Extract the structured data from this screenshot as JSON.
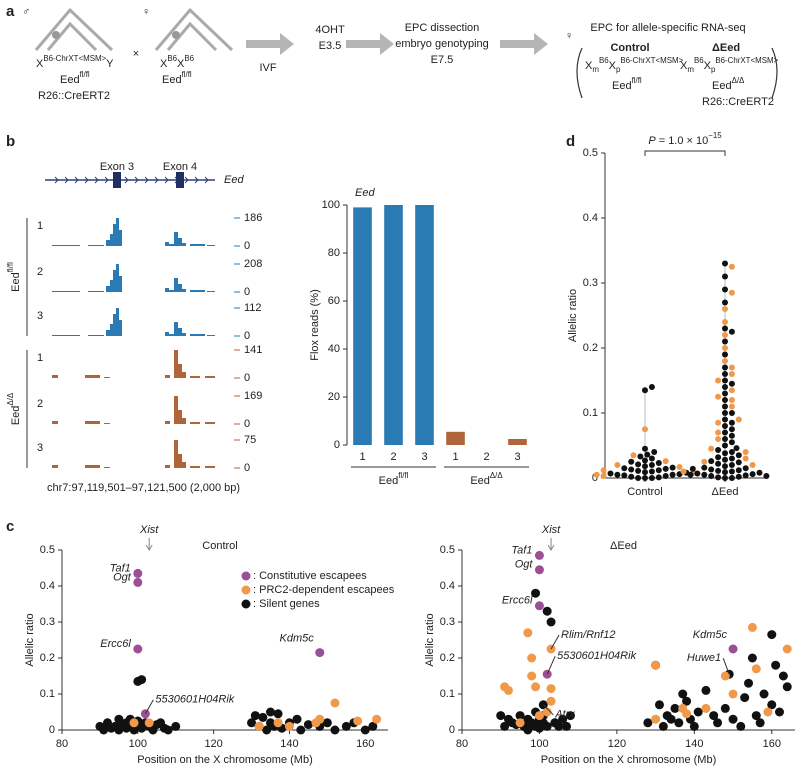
{
  "panel_labels": [
    "a",
    "b",
    "c",
    "d"
  ],
  "diagram": {
    "male_symbol": "♂",
    "female_symbol": "♀",
    "cross": "×",
    "male_genotype": [
      "X",
      "B6-ChrXT<MSM>",
      "Y"
    ],
    "male_eed": [
      "Eed",
      "fl/fl"
    ],
    "male_cre": "R26::CreERT2",
    "female_genotype": [
      "X",
      "B6",
      "X",
      "B6"
    ],
    "female_eed": [
      "Eed",
      "fl/fl"
    ],
    "step1": [
      "IVF"
    ],
    "step2": [
      "4OHT",
      "E3.5"
    ],
    "step3": [
      "EPC dissection",
      "embryo genotyping",
      "E7.5"
    ],
    "result_symbol": "♀",
    "result_title": "EPC for allele-specific RNA-seq",
    "control": {
      "title": "Control",
      "genotype": [
        "X",
        "m",
        "B6",
        "X",
        "p",
        "B6-ChrXT<MSM>"
      ],
      "eed": [
        "Eed",
        "fl/fl"
      ]
    },
    "deltaeed": {
      "title": "ΔEed",
      "genotype": [
        "X",
        "m",
        "B6",
        "X",
        "p",
        "B6-ChrXT<MSM>"
      ],
      "eed": [
        "Eed",
        "Δ/Δ"
      ],
      "cre": "R26::CreERT2"
    }
  },
  "tracks": {
    "exons": [
      "Exon 3",
      "Exon 4"
    ],
    "gene": "Eed",
    "baseline": 0,
    "groups": [
      {
        "label": [
          "Eed",
          "fl/fl"
        ],
        "rows": [
          "1",
          "2",
          "3"
        ],
        "maxima": [
          186,
          208,
          112
        ],
        "color": "#2a7ab4"
      },
      {
        "label": [
          "Eed",
          "Δ/Δ"
        ],
        "rows": [
          "1",
          "2",
          "3"
        ],
        "maxima": [
          141,
          169,
          75
        ],
        "color": "#b0643a"
      }
    ],
    "coordinates": "chr7:97,119,501–97,121,500 (2,000 bp)"
  },
  "chart_data": [
    {
      "type": "bar",
      "title": "Eed",
      "ylabel": "Flox reads (%)",
      "categories": [
        "1",
        "2",
        "3",
        "1",
        "2",
        "3"
      ],
      "values": [
        99,
        100,
        100,
        5.5,
        0,
        2.5
      ],
      "colors": [
        "#2a7ab4",
        "#2a7ab4",
        "#2a7ab4",
        "#b0643a",
        "#b0643a",
        "#b0643a"
      ],
      "groups": [
        [
          "Eed",
          "fl/fl"
        ],
        [
          "Eed",
          "Δ/Δ"
        ]
      ],
      "ylim": [
        0,
        100
      ],
      "yticks": [
        0,
        20,
        40,
        60,
        80,
        100
      ]
    },
    {
      "type": "swarm",
      "ylabel": "Allelic ratio",
      "ylim": [
        0,
        0.5
      ],
      "yticks": [
        0,
        0.1,
        0.2,
        0.3,
        0.4,
        0.5
      ],
      "annotation": [
        "P",
        " = 1.0 × 10",
        "−15"
      ],
      "groups": [
        {
          "name": "Control",
          "series": [
            {
              "color": "#111111",
              "values": [
                0,
                0,
                0,
                0.001,
                0.002,
                0.003,
                0.004,
                0.005,
                0.005,
                0.006,
                0.007,
                0.008,
                0.009,
                0.01,
                0.011,
                0.012,
                0.013,
                0.014,
                0.015,
                0.016,
                0.018,
                0.02,
                0.021,
                0.023,
                0.025,
                0.027,
                0.03,
                0.033,
                0.036,
                0.04,
                0.045,
                0.135,
                0.14
              ]
            },
            {
              "color": "#f0994a",
              "values": [
                0.003,
                0.008,
                0.012,
                0.02,
                0.026,
                0.035,
                0.075,
                0.005,
                0.017
              ]
            }
          ]
        },
        {
          "name": "ΔEed",
          "series": [
            {
              "color": "#111111",
              "values": [
                0,
                0,
                0.001,
                0.002,
                0.003,
                0.004,
                0.005,
                0.006,
                0.007,
                0.008,
                0.009,
                0.01,
                0.011,
                0.012,
                0.013,
                0.015,
                0.016,
                0.018,
                0.02,
                0.022,
                0.024,
                0.026,
                0.028,
                0.03,
                0.032,
                0.035,
                0.038,
                0.04,
                0.043,
                0.046,
                0.05,
                0.055,
                0.06,
                0.065,
                0.07,
                0.075,
                0.08,
                0.085,
                0.09,
                0.1,
                0.11,
                0.12,
                0.13,
                0.14,
                0.16,
                0.17,
                0.19,
                0.21,
                0.23,
                0.27,
                0.29,
                0.31,
                0.33,
                0.225,
                0.15,
                0.145,
                0.1,
                0.005,
                0.014,
                0.003
              ]
            },
            {
              "color": "#f0994a",
              "values": [
                0.01,
                0.02,
                0.03,
                0.045,
                0.06,
                0.07,
                0.085,
                0.09,
                0.11,
                0.12,
                0.125,
                0.135,
                0.15,
                0.16,
                0.17,
                0.18,
                0.2,
                0.22,
                0.24,
                0.26,
                0.285,
                0.325,
                0.04,
                0.025
              ]
            }
          ]
        }
      ]
    },
    {
      "type": "scatter",
      "title": "Control",
      "xlabel": "Position on the X chromosome (Mb)",
      "ylabel": "Allelic ratio",
      "xlim": [
        80,
        166
      ],
      "xticks": [
        80,
        100,
        120,
        140,
        160
      ],
      "ylim": [
        0,
        0.5
      ],
      "yticks": [
        0,
        0.1,
        0.2,
        0.3,
        0.4,
        0.5
      ],
      "reference": {
        "label": "Xist",
        "x": 103
      },
      "legend": "upper right",
      "series": [
        {
          "name": ": Constitutive escapees",
          "color": "#9b4f96",
          "x": [
            100,
            100,
            100,
            102,
            148
          ],
          "values": [
            0.435,
            0.41,
            0.225,
            0.045,
            0.215
          ],
          "labels": [
            "Taf1",
            "Ogt",
            "Ercc6l",
            "5530601H04Rik",
            "Kdm5c"
          ]
        },
        {
          "name": ": PRC2-dependent escapees",
          "color": "#f0994a",
          "x": [
            99,
            103,
            132,
            137,
            140,
            147,
            148,
            152,
            158,
            163
          ],
          "values": [
            0.02,
            0.02,
            0.01,
            0.02,
            0.01,
            0.02,
            0.03,
            0.075,
            0.025,
            0.03
          ]
        },
        {
          "name": ": Silent genes",
          "color": "#111111",
          "x": [
            90,
            91,
            92,
            93,
            94,
            95,
            95,
            96,
            97,
            97,
            98,
            98,
            99,
            99,
            100,
            100,
            101,
            101,
            102,
            103,
            104,
            105,
            106,
            107,
            108,
            110,
            100,
            101,
            130,
            131,
            132,
            133,
            134,
            135,
            135,
            136,
            137,
            138,
            140,
            142,
            143,
            145,
            148,
            150,
            152,
            155,
            157,
            160,
            162
          ],
          "values": [
            0.01,
            0,
            0.02,
            0.005,
            0.01,
            0.03,
            0,
            0.015,
            0.02,
            0.005,
            0.01,
            0.03,
            0,
            0.02,
            0.01,
            0.135,
            0.14,
            0.005,
            0.02,
            0.01,
            0,
            0.015,
            0.02,
            0.005,
            0,
            0.01,
            0.025,
            0.01,
            0.02,
            0.04,
            0.01,
            0.035,
            0,
            0.05,
            0.02,
            0.01,
            0.045,
            0.005,
            0.02,
            0.03,
            0,
            0.015,
            0.01,
            0.02,
            0,
            0.01,
            0.02,
            0,
            0.01
          ]
        }
      ]
    },
    {
      "type": "scatter",
      "title": "ΔEed",
      "xlabel": "Position on the X chromosome (Mb)",
      "ylabel": "Allelic ratio",
      "xlim": [
        80,
        166
      ],
      "xticks": [
        80,
        100,
        120,
        140,
        160
      ],
      "ylim": [
        0,
        0.5
      ],
      "yticks": [
        0,
        0.1,
        0.2,
        0.3,
        0.4,
        0.5
      ],
      "reference": {
        "label": "Xist",
        "x": 103
      },
      "series": [
        {
          "color": "#9b4f96",
          "x": [
            100,
            100,
            100,
            102,
            150
          ],
          "values": [
            0.485,
            0.445,
            0.345,
            0.155,
            0.225
          ],
          "labels": [
            "Taf1",
            "Ogt",
            "Ercc6l",
            "5530601H04Rik",
            "Kdm5c"
          ]
        },
        {
          "color": "#f0994a",
          "x": [
            103,
            97,
            98,
            98,
            92,
            91,
            99,
            103,
            103,
            102,
            100,
            130,
            137,
            138,
            143,
            148,
            150,
            155,
            156,
            159,
            164,
            130,
            95
          ],
          "values": [
            0.225,
            0.27,
            0.2,
            0.15,
            0.11,
            0.12,
            0.12,
            0.115,
            0.08,
            0.05,
            0.04,
            0.18,
            0.06,
            0.045,
            0.06,
            0.15,
            0.1,
            0.285,
            0.17,
            0.05,
            0.225,
            0.03,
            0.02
          ],
          "labels": [
            "Rlim/Rnf12",
            null,
            null,
            null,
            null,
            null,
            null,
            null,
            null,
            null,
            null,
            null,
            null,
            null,
            null,
            null,
            null,
            null,
            null,
            null,
            null,
            null,
            null
          ]
        },
        {
          "color": "#111111",
          "x": [
            90,
            91,
            92,
            93,
            94,
            95,
            96,
            97,
            97,
            98,
            99,
            99,
            100,
            101,
            101,
            102,
            103,
            104,
            105,
            106,
            107,
            108,
            102,
            104,
            101,
            99,
            100,
            101,
            128,
            130,
            131,
            132,
            133,
            134,
            135,
            136,
            137,
            138,
            139,
            140,
            141,
            143,
            145,
            146,
            148,
            149,
            150,
            152,
            153,
            154,
            155,
            156,
            157,
            158,
            160,
            160,
            161,
            162,
            163,
            164
          ],
          "values": [
            0.04,
            0.01,
            0.03,
            0.02,
            0.015,
            0.04,
            0.01,
            0.03,
            0,
            0.02,
            0.05,
            0.01,
            0.03,
            0.02,
            0.07,
            0.33,
            0.3,
            0.02,
            0.01,
            0.03,
            0.01,
            0.04,
            0.01,
            0.02,
            0.04,
            0.38,
            0.005,
            0.015,
            0.02,
            0.18,
            0.07,
            0.01,
            0.04,
            0.03,
            0.06,
            0.02,
            0.1,
            0.08,
            0.03,
            0.01,
            0.05,
            0.11,
            0.04,
            0.02,
            0.06,
            0.155,
            0.03,
            0.01,
            0.09,
            0.13,
            0.2,
            0.04,
            0.02,
            0.1,
            0.265,
            0.07,
            0.18,
            0.05,
            0.15,
            0.12
          ],
          "labels": [
            null,
            null,
            null,
            null,
            null,
            null,
            null,
            null,
            null,
            null,
            null,
            null,
            null,
            null,
            "Atrx",
            null,
            null,
            null,
            null,
            null,
            null,
            null,
            null,
            null,
            null,
            null,
            null,
            null,
            null,
            null,
            null,
            null,
            null,
            null,
            null,
            null,
            null,
            null,
            null,
            null,
            null,
            null,
            null,
            null,
            null,
            "Huwe1",
            null,
            null,
            null,
            null,
            null,
            null,
            null,
            null,
            null,
            null,
            null,
            null,
            null,
            null
          ]
        }
      ]
    }
  ]
}
